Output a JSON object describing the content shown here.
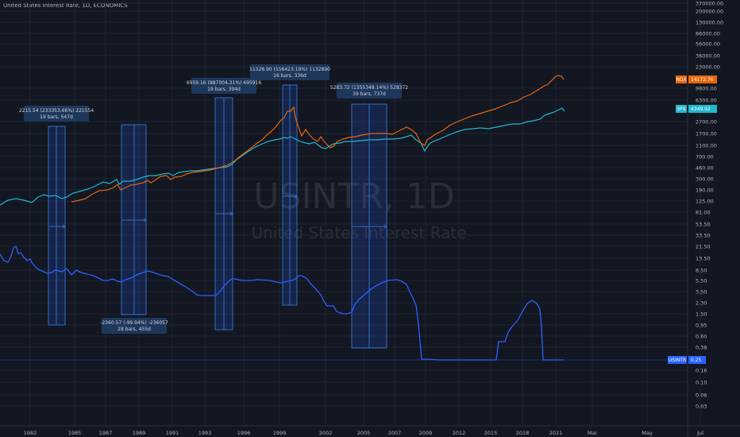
{
  "header": {
    "title": "United States Interest Rate, 1D, ECONOMICS"
  },
  "watermark": {
    "symbol": "USINTR, 1D",
    "description": "United States Interest Rate"
  },
  "price_scale": {
    "labels": [
      "370000.00",
      "200000.00",
      "130000.00",
      "86000.00",
      "56000.00",
      "36000.00",
      "23000.00",
      "9800.00",
      "6300.00",
      "2700.00",
      "1700.00",
      "1100.00",
      "700.00",
      "460.00",
      "300.00",
      "190.00",
      "125.00",
      "81.00",
      "53.50",
      "33.50",
      "21.50",
      "13.50",
      "8.50",
      "5.50",
      "3.50",
      "2.30",
      "1.50",
      "0.95",
      "0.60",
      "0.38",
      "0.16",
      "0.10",
      "0.06",
      "0.03"
    ],
    "badges": [
      {
        "symbol": "NDX",
        "value": "14172.76",
        "color": "#e8650a"
      },
      {
        "symbol": "SPX",
        "value": "4349.92",
        "color": "#1fb8cd"
      },
      {
        "symbol": "USINTR",
        "value": "0.25",
        "color": "#2962ff"
      }
    ]
  },
  "time_scale": {
    "labels": [
      "1982",
      "1985",
      "1987",
      "1989",
      "1991",
      "1993",
      "1996",
      "1999",
      "2002",
      "2005",
      "2007",
      "2009",
      "2012",
      "2015",
      "2018",
      "2021",
      "Mar",
      "May",
      "Jul"
    ]
  },
  "measurements": [
    {
      "line1": "2215.54 (233353.66%) 221554",
      "line2": "19 bars, 547d"
    },
    {
      "line1": "-2360.57 (-99.94%) -236057",
      "line2": "28 bars, 455d"
    },
    {
      "line1": "6959.16 (887004.31%) 695916",
      "line2": "19 bars, 394d"
    },
    {
      "line1": "11328.90 (556423.19%) 1132890",
      "line2": "16 bars, 336d"
    },
    {
      "line1": "5283.72 (1355348.14%) 528372",
      "line2": "39 bars, 737d"
    }
  ],
  "chart_data": {
    "type": "line",
    "title": "United States Interest Rate, 1D, ECONOMICS",
    "xlabel": "",
    "ylabel": "",
    "y_scale": "log",
    "grid": true,
    "legend_position": "right price scale badges",
    "x": [
      "1980",
      "1981",
      "1982",
      "1984",
      "1985",
      "1987",
      "1988",
      "1989",
      "1990",
      "1992",
      "1993",
      "1994",
      "1995",
      "1997",
      "1998",
      "1999",
      "2000",
      "2001",
      "2002",
      "2003",
      "2004",
      "2005",
      "2006",
      "2007",
      "2008",
      "2009",
      "2012",
      "2015",
      "2016",
      "2017",
      "2018",
      "2019",
      "2020",
      "2021"
    ],
    "series": [
      {
        "name": "USINTR",
        "color": "#2962ff",
        "values": [
          11.0,
          16.0,
          12.0,
          9.0,
          8.0,
          6.5,
          7.0,
          9.5,
          8.0,
          3.5,
          3.0,
          5.5,
          6.0,
          5.5,
          5.0,
          5.5,
          6.5,
          3.5,
          1.75,
          1.0,
          1.25,
          3.0,
          5.25,
          5.25,
          2.0,
          0.25,
          0.25,
          0.25,
          0.5,
          1.25,
          2.25,
          2.5,
          0.25,
          0.25
        ]
      },
      {
        "name": "SPX",
        "color": "#1fb8cd",
        "values": [
          110,
          125,
          120,
          160,
          180,
          280,
          260,
          330,
          340,
          420,
          450,
          460,
          600,
          900,
          1150,
          1300,
          1400,
          1150,
          880,
          900,
          1130,
          1200,
          1400,
          1500,
          900,
          900,
          1400,
          2050,
          2200,
          2600,
          2700,
          3200,
          3700,
          4349.92
        ]
      },
      {
        "name": "NDX",
        "color": "#e8650a",
        "values": [
          null,
          null,
          null,
          110,
          130,
          210,
          190,
          240,
          240,
          330,
          400,
          420,
          600,
          900,
          1500,
          2500,
          4200,
          1800,
          1000,
          1400,
          1500,
          1600,
          1700,
          2000,
          1200,
          1800,
          2600,
          4400,
          4600,
          6300,
          7000,
          8500,
          12500,
          14172.76
        ]
      }
    ],
    "annotations": [
      "2215.54 (233353.66%) 221554 | 19 bars, 547d",
      "-2360.57 (-99.94%) -236057 | 28 bars, 455d",
      "6959.16 (887004.31%) 695916 | 19 bars, 394d",
      "11328.90 (556423.19%) 1132890 | 16 bars, 336d",
      "5283.72 (1355348.14%) 528372 | 39 bars, 737d"
    ],
    "last_values": {
      "USINTR": 0.25,
      "SPX": 4349.92,
      "NDX": 14172.76
    }
  }
}
